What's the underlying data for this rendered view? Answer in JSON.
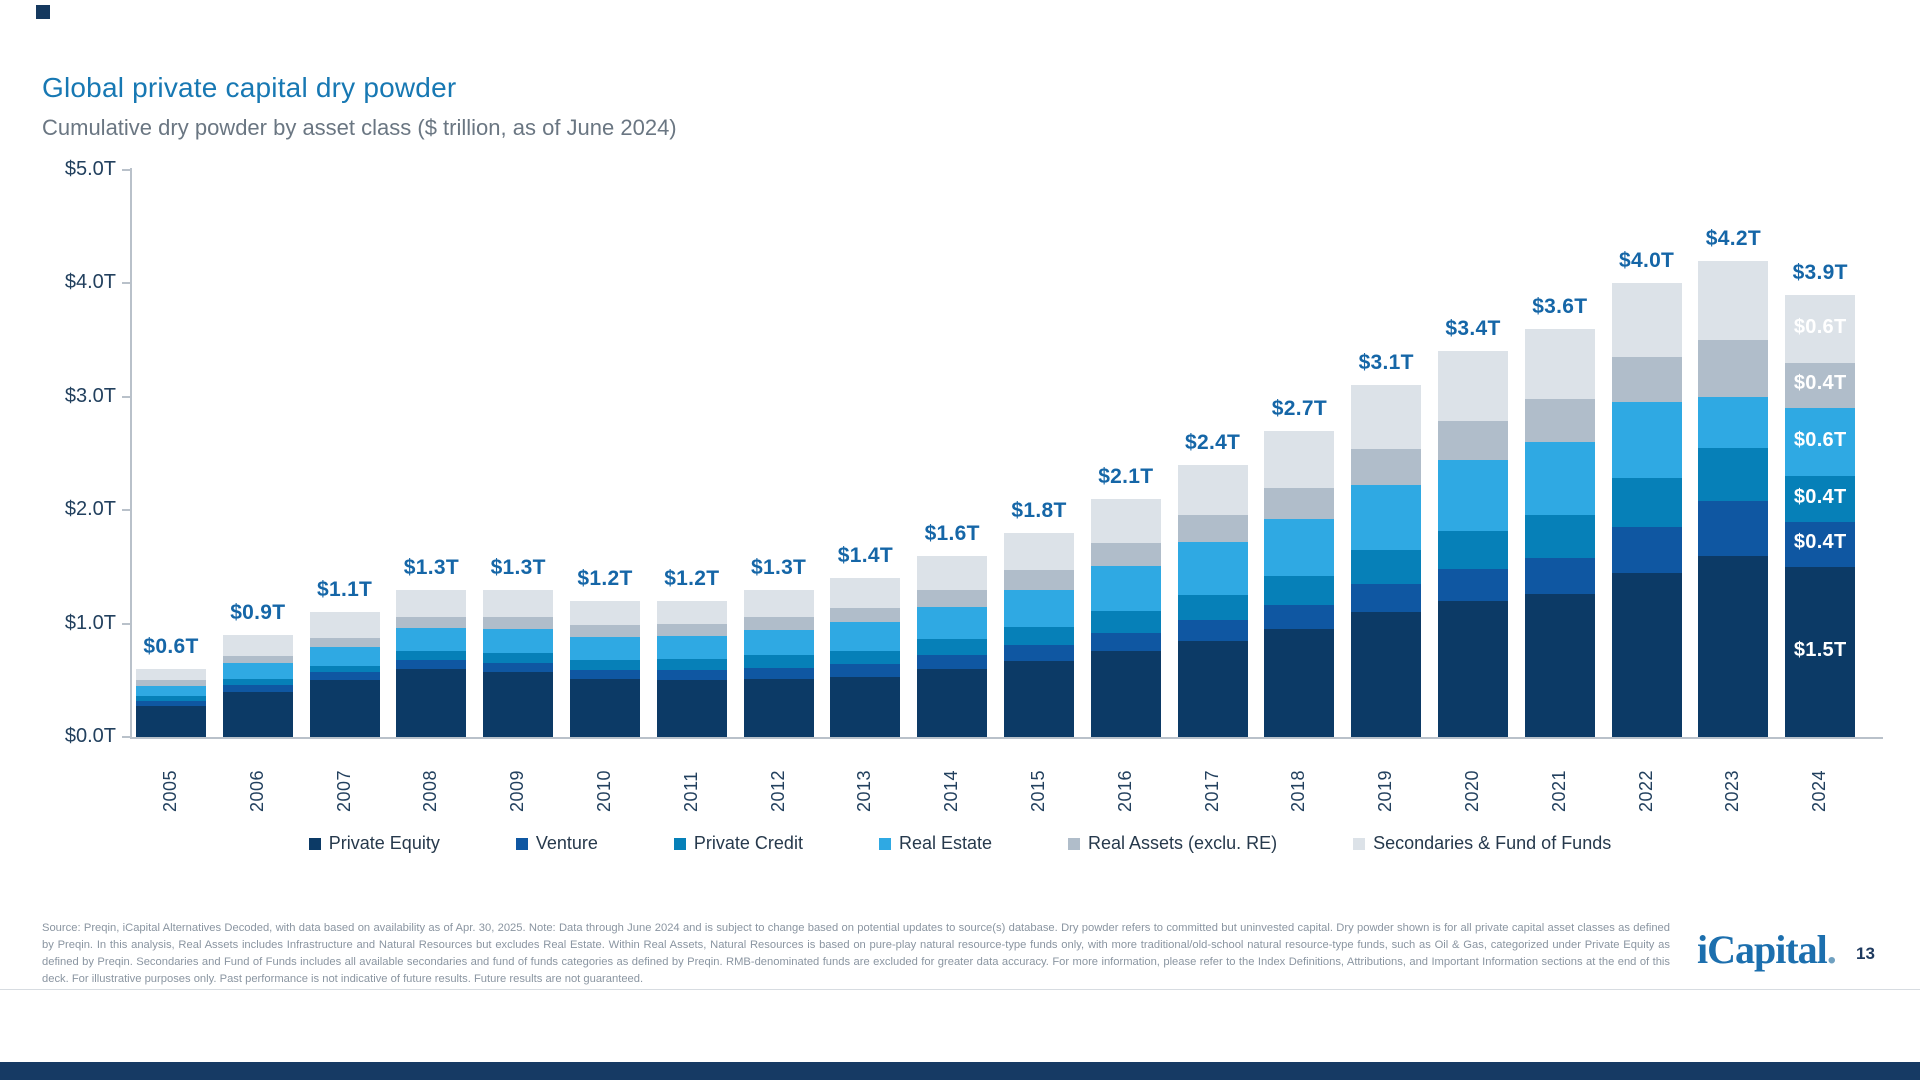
{
  "slide": {
    "title": "Global private capital dry powder",
    "subtitle": "Cumulative dry powder by asset class ($ trillion, as of June 2024)",
    "footnote": "Source: Preqin, iCapital Alternatives Decoded, with data based on availability as of Apr. 30, 2025. Note: Data through June 2024 and is subject to change based on potential updates to source(s) database. Dry powder refers to committed but uninvested capital. Dry powder shown is for all private capital asset classes as defined by Preqin. In this analysis, Real Assets includes Infrastructure and Natural Resources but excludes Real Estate. Within Real Assets, Natural Resources is based on pure-play natural resource-type funds only, with more traditional/old-school natural resource-type funds, such as Oil & Gas, categorized under Private Equity as defined by Preqin. Secondaries and Fund of Funds includes all available secondaries and fund of funds categories as defined by Preqin. RMB-denominated funds are excluded for greater data accuracy. For more information, please refer to the Index Definitions, Attributions, and Important Information sections at the end of this deck. For illustrative purposes only. Past performance is not indicative of future results. Future results are not guaranteed.",
    "logo_text": "iCapital",
    "logo_dot": ".",
    "page_number": "13",
    "accent_colors": {
      "title_blue": "#1778b3",
      "total_label_blue": "#1566a7",
      "axis_text": "#22405e",
      "footer_bar_navy": "#163a64"
    }
  },
  "chart_data": {
    "type": "bar",
    "stacked": true,
    "grid": false,
    "legend_position": "bottom",
    "title": "Global private capital dry powder",
    "subtitle": "Cumulative dry powder by asset class ($ trillion, as of June 2024)",
    "xlabel": "",
    "ylabel": "$ trillion",
    "ylim": [
      0,
      5
    ],
    "y_axis": {
      "tick_values": [
        0,
        1,
        2,
        3,
        4,
        5
      ],
      "tick_labels": [
        "$0.0T",
        "$1.0T",
        "$2.0T",
        "$3.0T",
        "$4.0T",
        "$5.0T"
      ]
    },
    "categories": [
      "2005",
      "2006",
      "2007",
      "2008",
      "2009",
      "2010",
      "2011",
      "2012",
      "2013",
      "2014",
      "2015",
      "2016",
      "2017",
      "2018",
      "2019",
      "2020",
      "2021",
      "2022",
      "2023",
      "2024"
    ],
    "totals": [
      0.6,
      0.9,
      1.1,
      1.3,
      1.3,
      1.2,
      1.2,
      1.3,
      1.4,
      1.6,
      1.8,
      2.1,
      2.4,
      2.7,
      3.1,
      3.4,
      3.6,
      4.0,
      4.2,
      3.9
    ],
    "total_labels": [
      "$0.6T",
      "$0.9T",
      "$1.1T",
      "$1.3T",
      "$1.3T",
      "$1.2T",
      "$1.2T",
      "$1.3T",
      "$1.4T",
      "$1.6T",
      "$1.8T",
      "$2.1T",
      "$2.4T",
      "$2.7T",
      "$3.1T",
      "$3.4T",
      "$3.6T",
      "$4.0T",
      "$4.2T",
      "$3.9T"
    ],
    "series": [
      {
        "name": "Private Equity",
        "color": "#0c3a66",
        "values": [
          0.27,
          0.4,
          0.5,
          0.6,
          0.57,
          0.51,
          0.5,
          0.51,
          0.53,
          0.6,
          0.67,
          0.76,
          0.85,
          0.95,
          1.1,
          1.2,
          1.26,
          1.45,
          1.6,
          1.5
        ]
      },
      {
        "name": "Venture",
        "color": "#0f57a2",
        "values": [
          0.05,
          0.06,
          0.07,
          0.08,
          0.08,
          0.08,
          0.09,
          0.1,
          0.11,
          0.12,
          0.14,
          0.16,
          0.18,
          0.21,
          0.25,
          0.28,
          0.32,
          0.4,
          0.48,
          0.4
        ]
      },
      {
        "name": "Private Credit",
        "color": "#0680b8",
        "values": [
          0.04,
          0.05,
          0.06,
          0.08,
          0.09,
          0.09,
          0.1,
          0.11,
          0.12,
          0.14,
          0.16,
          0.19,
          0.22,
          0.26,
          0.3,
          0.34,
          0.38,
          0.43,
          0.47,
          0.4
        ]
      },
      {
        "name": "Real Estate",
        "color": "#2fa9e3",
        "values": [
          0.09,
          0.14,
          0.16,
          0.2,
          0.21,
          0.2,
          0.2,
          0.22,
          0.25,
          0.29,
          0.33,
          0.4,
          0.47,
          0.5,
          0.57,
          0.62,
          0.64,
          0.67,
          0.45,
          0.6
        ]
      },
      {
        "name": "Real Assets (exclu. RE)",
        "color": "#b0bdca",
        "values": [
          0.05,
          0.06,
          0.08,
          0.1,
          0.11,
          0.11,
          0.11,
          0.12,
          0.13,
          0.15,
          0.17,
          0.2,
          0.24,
          0.28,
          0.32,
          0.35,
          0.38,
          0.4,
          0.5,
          0.4
        ]
      },
      {
        "name": "Secondaries & Fund of Funds",
        "color": "#dce2e8",
        "values": [
          0.1,
          0.19,
          0.23,
          0.24,
          0.24,
          0.21,
          0.2,
          0.24,
          0.26,
          0.3,
          0.33,
          0.39,
          0.44,
          0.5,
          0.56,
          0.61,
          0.62,
          0.65,
          0.7,
          0.6
        ]
      }
    ],
    "value_labels": {
      "2024": [
        "$1.5T",
        "$0.4T",
        "$0.4T",
        "$0.6T",
        "$0.4T",
        "$0.6T"
      ]
    }
  }
}
